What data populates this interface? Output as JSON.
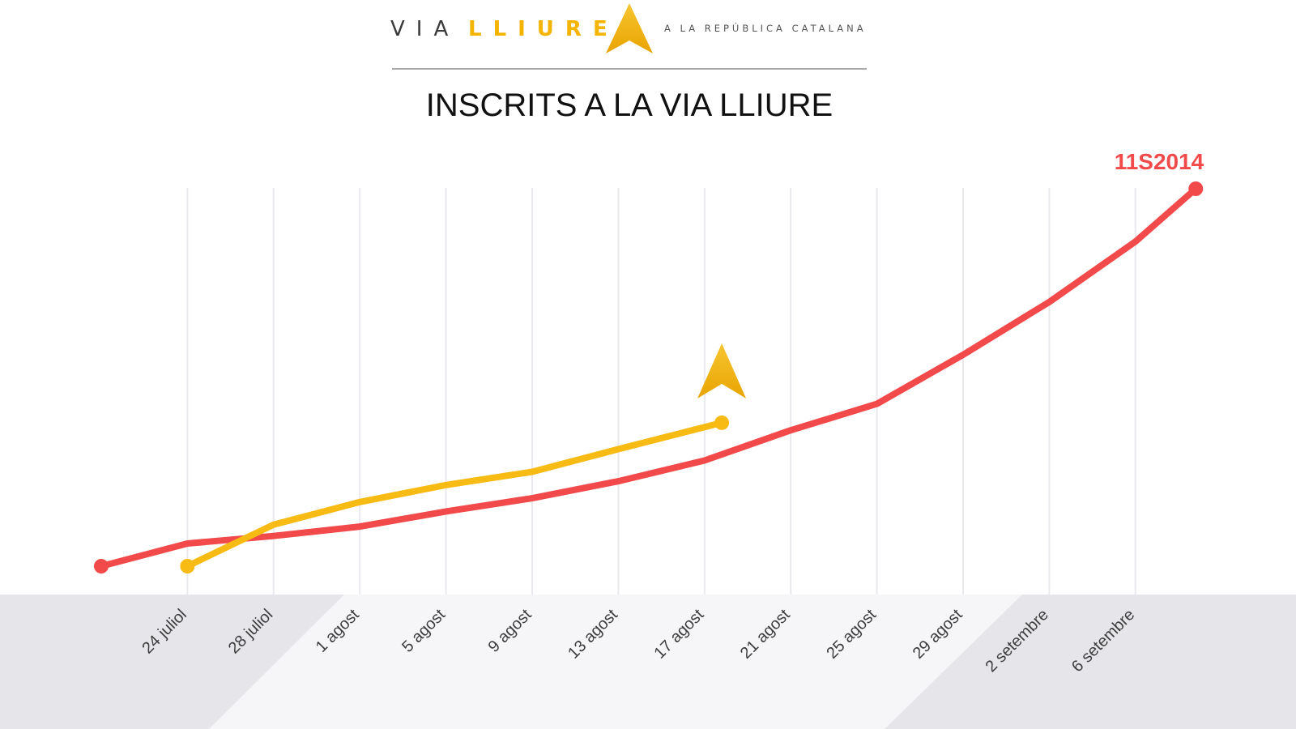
{
  "logo": {
    "word1": "VIA",
    "word2": "LLIURE",
    "tagline": "A LA REPÚBLICA CATALANA",
    "word1_color": "#3a3a3a",
    "word2_color": "#f5b400",
    "tagline_color": "#555555"
  },
  "colors": {
    "series_2014": "#f24a4a",
    "series_2015": "#f7bb14",
    "grid": "#e9e9ee",
    "band": "#e6e6ea",
    "band_light": "#f4f4f6"
  },
  "chart_data": {
    "type": "line",
    "title": "INSCRITS A LA VIA LLIURE",
    "x_positions": [
      "",
      "24 juliol",
      "28 juliol",
      "1 agost",
      "5 agost",
      "9 agost",
      "13 agost",
      "17 agost",
      "21 agost",
      "25 agost",
      "29 agost",
      "2 setembre",
      "6 setembre",
      ""
    ],
    "tick_labels": [
      "24 juliol",
      "28 juliol",
      "1 agost",
      "5 agost",
      "9 agost",
      "13 agost",
      "17 agost",
      "21 agost",
      "25 agost",
      "29 agost",
      "2 setembre",
      "6 setembre"
    ],
    "grid": true,
    "y_axis": "none",
    "ylim": [
      0,
      100
    ],
    "series": [
      {
        "color": "#f24a4a",
        "end_label": "11S2014",
        "points": [
          {
            "x": 0,
            "y": 0
          },
          {
            "x": 1,
            "y": 6
          },
          {
            "x": 2,
            "y": 8
          },
          {
            "x": 3,
            "y": 10.5
          },
          {
            "x": 4,
            "y": 14.5
          },
          {
            "x": 5,
            "y": 18
          },
          {
            "x": 6,
            "y": 22.5
          },
          {
            "x": 7,
            "y": 28
          },
          {
            "x": 8,
            "y": 36
          },
          {
            "x": 9,
            "y": 43
          },
          {
            "x": 10,
            "y": 56
          },
          {
            "x": 11,
            "y": 70
          },
          {
            "x": 12,
            "y": 86
          },
          {
            "x": 12.7,
            "y": 100
          }
        ]
      },
      {
        "color": "#f7bb14",
        "end_marker": "arrow-icon",
        "points": [
          {
            "x": 1,
            "y": 0
          },
          {
            "x": 2,
            "y": 11
          },
          {
            "x": 3,
            "y": 17
          },
          {
            "x": 4,
            "y": 21.5
          },
          {
            "x": 5,
            "y": 25
          },
          {
            "x": 6,
            "y": 31
          },
          {
            "x": 7.2,
            "y": 38
          }
        ]
      }
    ]
  }
}
